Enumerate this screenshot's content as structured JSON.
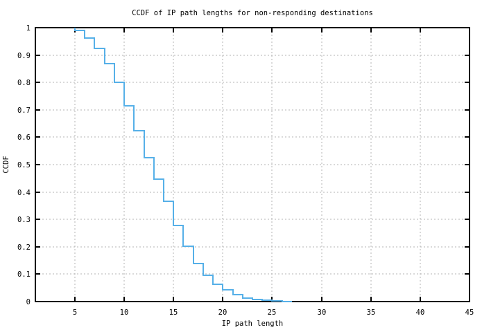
{
  "figure": {
    "title": "CCDF of IP path lengths for non-responding destinations",
    "xlabel": "IP path length",
    "ylabel": "CCDF"
  },
  "chart_data": {
    "type": "line",
    "subtype": "step-post",
    "title": "CCDF of IP path lengths for non-responding destinations",
    "xlabel": "IP path length",
    "ylabel": "CCDF",
    "xlim": [
      1,
      45
    ],
    "ylim": [
      0,
      1
    ],
    "xticks": [
      5,
      10,
      15,
      20,
      25,
      30,
      35,
      40,
      45
    ],
    "yticks": [
      0,
      0.1,
      0.2,
      0.3,
      0.4,
      0.5,
      0.6,
      0.7,
      0.8,
      0.9,
      1
    ],
    "ytick_labels": [
      "0",
      "0.1",
      "0.2",
      "0.3",
      "0.4",
      "0.5",
      "0.6",
      "0.7",
      "0.8",
      "0.9",
      "1"
    ],
    "grid": true,
    "legend": "none",
    "colors": {
      "line": "#56b0e8",
      "grid": "#b3b3b3",
      "frame": "#000000",
      "background": "#ffffff"
    },
    "series": [
      {
        "name": "ccdf",
        "start": [
          5,
          1.0
        ],
        "points": [
          [
            5,
            0.99
          ],
          [
            6,
            0.963
          ],
          [
            7,
            0.923
          ],
          [
            8,
            0.868
          ],
          [
            9,
            0.8
          ],
          [
            10,
            0.715
          ],
          [
            11,
            0.623
          ],
          [
            12,
            0.526
          ],
          [
            13,
            0.446
          ],
          [
            14,
            0.365
          ],
          [
            15,
            0.278
          ],
          [
            16,
            0.202
          ],
          [
            17,
            0.138
          ],
          [
            18,
            0.097
          ],
          [
            19,
            0.062
          ],
          [
            20,
            0.042
          ],
          [
            21,
            0.024
          ],
          [
            22,
            0.012
          ],
          [
            23,
            0.007
          ],
          [
            24,
            0.004
          ],
          [
            25,
            0.002
          ],
          [
            26,
            0.001
          ]
        ],
        "end_x": 27
      }
    ]
  }
}
